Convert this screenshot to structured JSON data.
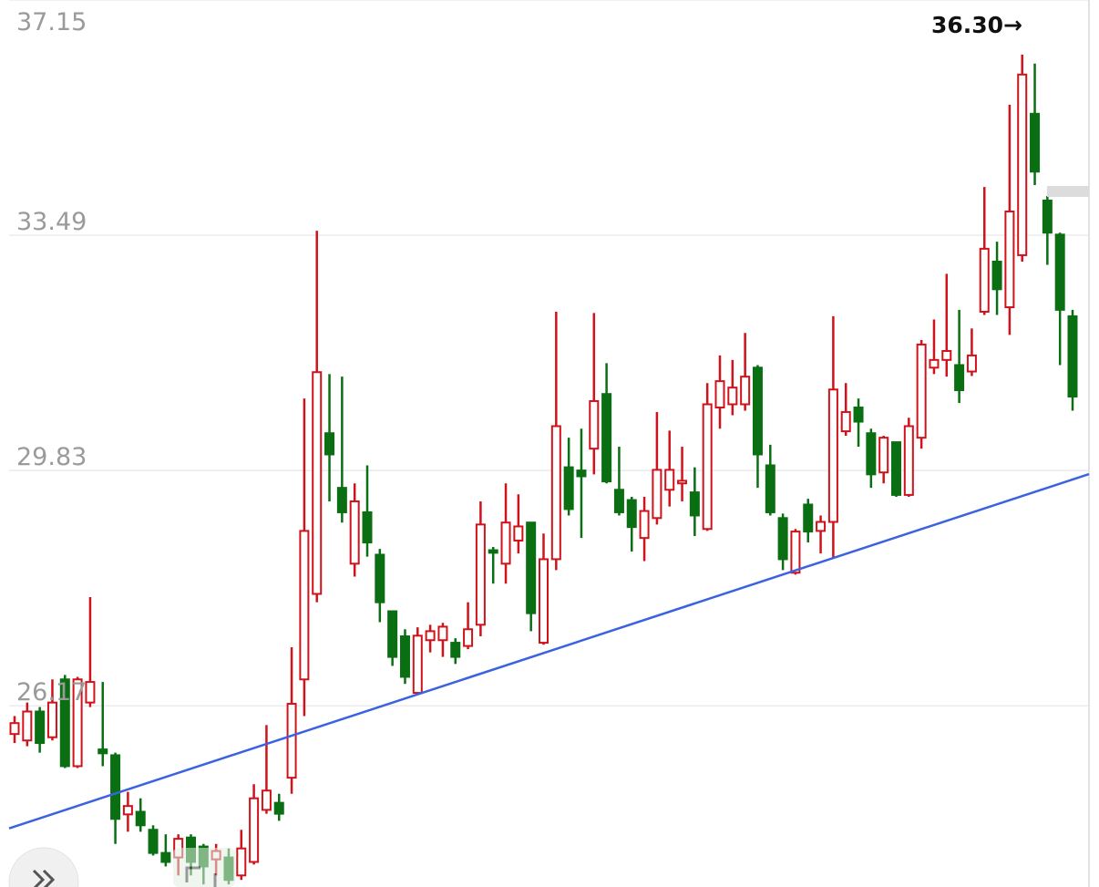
{
  "chart_data": {
    "type": "candlestick",
    "ylim": [
      23.35,
      37.15
    ],
    "yticks": [
      37.15,
      33.49,
      29.83,
      26.17
    ],
    "grid": true,
    "up_color": "#d0121b",
    "down_color": "#0a6e12",
    "open": [
      25.73,
      25.63,
      26.08,
      25.68,
      26.58,
      25.23,
      26.22,
      25.49,
      25.4,
      24.48,
      24.52,
      24.24,
      23.88,
      23.81,
      24.12,
      23.98,
      23.78,
      23.81,
      23.53,
      23.74,
      24.55,
      24.66,
      25.05,
      26.58,
      27.91,
      30.41,
      29.56,
      28.38,
      29.18,
      28.52,
      27.64,
      27.25,
      26.37,
      27.19,
      27.19,
      27.15,
      27.1,
      27.43,
      28.59,
      28.38,
      28.74,
      29.02,
      27.15,
      28.45,
      29.88,
      29.83,
      30.17,
      31.02,
      29.53,
      29.37,
      28.78,
      29.09,
      29.53,
      29.63,
      29.49,
      28.92,
      30.81,
      30.86,
      30.86,
      31.43,
      29.91,
      29.09,
      28.24,
      29.3,
      28.89,
      29.03,
      30.44,
      30.81,
      30.41,
      29.8,
      30.27,
      29.45,
      30.34,
      31.43,
      31.55,
      31.47,
      31.37,
      32.3,
      33.08,
      32.37,
      33.18,
      35.38,
      34.03,
      33.5,
      32.23
    ],
    "high": [
      26.01,
      26.22,
      26.15,
      26.58,
      26.65,
      26.62,
      27.86,
      26.54,
      25.44,
      24.83,
      24.73,
      24.31,
      24.17,
      24.17,
      24.17,
      24.02,
      24.02,
      23.95,
      24.24,
      24.95,
      25.87,
      24.8,
      27.08,
      30.95,
      33.56,
      31.33,
      31.29,
      29.63,
      29.91,
      28.61,
      27.64,
      27.36,
      27.39,
      27.43,
      27.46,
      27.22,
      27.78,
      29.35,
      28.64,
      29.63,
      29.46,
      29.03,
      28.85,
      32.3,
      30.34,
      30.48,
      32.28,
      31.5,
      30.2,
      29.42,
      29.42,
      30.74,
      30.45,
      30.2,
      29.88,
      31.19,
      31.62,
      31.55,
      31.97,
      31.47,
      30.23,
      29.16,
      28.92,
      29.39,
      29.13,
      32.23,
      31.19,
      30.95,
      30.48,
      30.37,
      30.27,
      30.65,
      31.86,
      32.18,
      32.89,
      32.33,
      32.04,
      34.24,
      33.39,
      35.52,
      36.3,
      36.16,
      34.1,
      33.53,
      32.33
    ],
    "low": [
      25.59,
      25.54,
      25.44,
      25.63,
      25.2,
      25.2,
      26.15,
      25.23,
      24.02,
      24.21,
      24.21,
      23.84,
      23.67,
      23.53,
      23.53,
      23.39,
      23.53,
      23.39,
      23.46,
      23.7,
      24.49,
      24.38,
      24.8,
      26.01,
      27.78,
      29.35,
      29.02,
      28.18,
      28.49,
      27.47,
      26.79,
      26.51,
      26.34,
      27.0,
      26.93,
      26.82,
      27.05,
      27.25,
      28.07,
      28.07,
      28.54,
      27.33,
      27.12,
      28.28,
      29.13,
      28.78,
      29.77,
      29.63,
      29.13,
      28.57,
      28.42,
      28.99,
      29.27,
      29.35,
      28.81,
      28.89,
      30.48,
      30.69,
      30.76,
      29.56,
      29.13,
      28.28,
      28.21,
      28.71,
      28.54,
      28.47,
      30.37,
      30.2,
      29.56,
      29.63,
      29.42,
      29.42,
      30.17,
      31.33,
      31.29,
      30.88,
      31.3,
      32.25,
      32.25,
      31.94,
      33.08,
      34.27,
      33.03,
      31.47,
      30.76
    ],
    "close": [
      25.9,
      26.08,
      25.59,
      26.22,
      25.23,
      26.58,
      26.54,
      25.43,
      24.41,
      24.61,
      24.31,
      23.88,
      23.74,
      24.1,
      23.74,
      23.67,
      23.91,
      23.46,
      23.95,
      24.73,
      24.85,
      24.49,
      26.2,
      28.89,
      31.36,
      30.08,
      29.18,
      29.35,
      28.71,
      27.78,
      26.93,
      26.62,
      27.26,
      27.33,
      27.4,
      26.93,
      27.36,
      28.99,
      28.55,
      29.02,
      28.96,
      27.61,
      28.45,
      30.52,
      29.23,
      29.74,
      30.91,
      29.66,
      29.18,
      28.95,
      29.2,
      29.84,
      29.84,
      29.67,
      29.13,
      30.86,
      31.22,
      31.12,
      31.29,
      30.08,
      29.18,
      28.45,
      28.88,
      28.88,
      29.03,
      31.09,
      30.74,
      30.59,
      29.77,
      30.34,
      29.45,
      30.52,
      31.79,
      31.55,
      31.69,
      31.08,
      31.62,
      33.28,
      32.65,
      33.86,
      35.99,
      34.48,
      33.53,
      32.33,
      30.98
    ],
    "trend_line": {
      "color": "#3b63e0",
      "start": [
        0,
        24.29
      ],
      "end": [
        84,
        29.69
      ]
    },
    "annotations": [
      {
        "text": "36.30→"
      }
    ]
  }
}
